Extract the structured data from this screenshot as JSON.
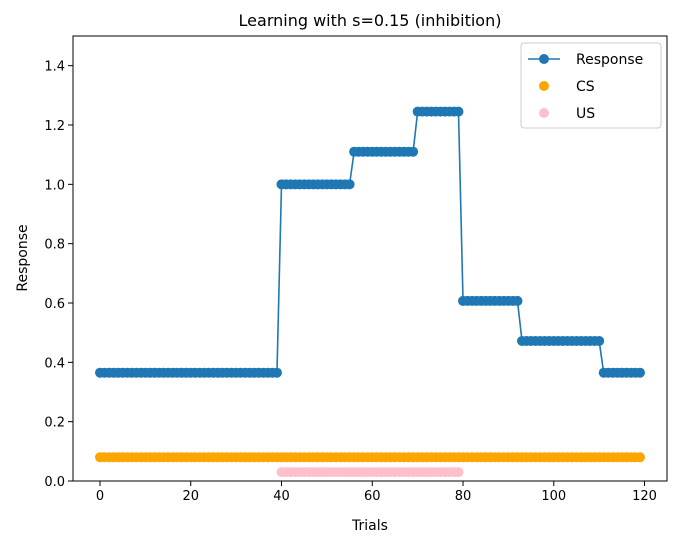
{
  "chart_data": {
    "type": "line",
    "title": "Learning with s=0.15 (inhibition)",
    "xlabel": "Trials",
    "ylabel": "Response",
    "xlim": [
      -5.95,
      124.95
    ],
    "ylim": [
      0,
      1.5
    ],
    "xticks": [
      0,
      20,
      40,
      60,
      80,
      100,
      120
    ],
    "yticks": [
      0.0,
      0.2,
      0.4,
      0.6,
      0.8,
      1.0,
      1.2,
      1.4
    ],
    "xtick_labels": [
      "0",
      "20",
      "40",
      "60",
      "80",
      "100",
      "120"
    ],
    "ytick_labels": [
      "0.0",
      "0.2",
      "0.4",
      "0.6",
      "0.8",
      "1.0",
      "1.2",
      "1.4"
    ],
    "grid": false,
    "legend_position": "top-right",
    "series": [
      {
        "name": "Response",
        "kind": "line-marker",
        "color": "#1f77b4",
        "segments": [
          {
            "from": 0,
            "to": 39,
            "value": 0.365
          },
          {
            "from": 40,
            "to": 55,
            "value": 1.0
          },
          {
            "from": 56,
            "to": 69,
            "value": 1.11
          },
          {
            "from": 70,
            "to": 79,
            "value": 1.245
          },
          {
            "from": 80,
            "to": 92,
            "value": 0.607
          },
          {
            "from": 93,
            "to": 110,
            "value": 0.472
          },
          {
            "from": 111,
            "to": 119,
            "value": 0.365
          }
        ]
      },
      {
        "name": "CS",
        "kind": "scatter",
        "color": "#ffa500",
        "segments": [
          {
            "from": 0,
            "to": 119,
            "value": 0.08
          }
        ]
      },
      {
        "name": "US",
        "kind": "scatter",
        "color": "#ffc0cb",
        "segments": [
          {
            "from": 40,
            "to": 79,
            "value": 0.03
          }
        ]
      }
    ]
  }
}
